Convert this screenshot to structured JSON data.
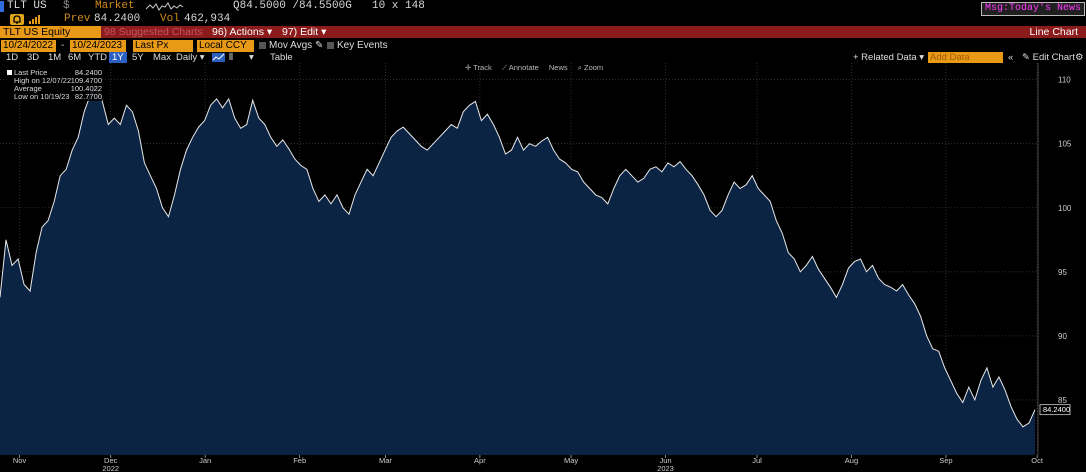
{
  "header": {
    "ticker": "TLT US",
    "currency": "$",
    "market": "Market",
    "quote": "Q84.5000 /84.5500G",
    "size": "10 x 148",
    "msg": "Msg:Today's News",
    "prev_label": "Prev",
    "prev_value": "84.2400",
    "vol_label": "Vol",
    "vol_value": "462,934"
  },
  "menubar": {
    "security": "TLT US Equity",
    "suggested": "98 Suggested Charts",
    "actions": "96) Actions ▾",
    "edit": "97) Edit ▾",
    "chart_type": "Line Chart"
  },
  "controls": {
    "start_date": "10/24/2022",
    "end_date": "10/24/2023",
    "field": "Last Px",
    "currency": "Local CCY",
    "mov_avgs": "Mov Avgs",
    "key_events": "Key Events"
  },
  "rangebar": {
    "ranges": [
      "1D",
      "3D",
      "1M",
      "6M",
      "YTD",
      "1Y",
      "5Y",
      "Max"
    ],
    "frequency": "Daily ▾",
    "table": "Table",
    "related": "+ Related Data ▾",
    "add_data": "Add Data",
    "edit_chart": "Edit Chart",
    "selected_range": "1Y"
  },
  "chart_toolbar": {
    "track": "✛ Track",
    "annotate": "⟋ Annotate",
    "news": "News",
    "zoom": "⌕ Zoom"
  },
  "legend": {
    "items": [
      {
        "label": "Last Price",
        "value": "84.2400"
      },
      {
        "label": "High on 12/07/22",
        "value": "109.4700"
      },
      {
        "label": "Average",
        "value": "100.4022"
      },
      {
        "label": "Low on 10/19/23",
        "value": "82.7700"
      }
    ]
  },
  "colors": {
    "accent": "#e89a17",
    "menubar": "#8c1c1c",
    "line": "#ffffff",
    "fill": "#0c2444"
  },
  "chart_data": {
    "type": "area",
    "ylim": [
      80.7,
      111.3
    ],
    "yticks": [
      85,
      90,
      95,
      100,
      105,
      110
    ],
    "last_label": "84.2400",
    "x_labels": [
      {
        "label": "Nov",
        "x": 6.5
      },
      {
        "label": "Dec",
        "x": 36.8
      },
      {
        "label": "Jan",
        "x": 68.2
      },
      {
        "label": "Feb",
        "x": 99.6
      },
      {
        "label": "Mar",
        "x": 128.1
      },
      {
        "label": "Apr",
        "x": 159.5
      },
      {
        "label": "May",
        "x": 189.8
      },
      {
        "label": "Jun",
        "x": 221.2
      },
      {
        "label": "Jul",
        "x": 251.6
      },
      {
        "label": "Aug",
        "x": 283
      },
      {
        "label": "Sep",
        "x": 314.4
      },
      {
        "label": "Oct",
        "x": 344.7
      }
    ],
    "year_labels": [
      {
        "label": "2022",
        "x": 36.8
      },
      {
        "label": "2023",
        "x": 221.2
      }
    ],
    "points": [
      [
        0,
        93.0
      ],
      [
        2,
        97.5
      ],
      [
        4,
        95.5
      ],
      [
        6,
        96.0
      ],
      [
        8,
        94.0
      ],
      [
        10,
        93.5
      ],
      [
        12,
        96.5
      ],
      [
        14,
        98.5
      ],
      [
        16,
        99.0
      ],
      [
        18,
        100.5
      ],
      [
        20,
        102.5
      ],
      [
        22,
        103.0
      ],
      [
        24,
        104.5
      ],
      [
        26,
        105.5
      ],
      [
        28,
        107.5
      ],
      [
        30,
        108.8
      ],
      [
        32,
        109.5
      ],
      [
        34,
        108.3
      ],
      [
        36,
        106.5
      ],
      [
        38,
        107.0
      ],
      [
        40,
        106.5
      ],
      [
        42,
        108.0
      ],
      [
        44,
        107.5
      ],
      [
        46,
        106.0
      ],
      [
        48,
        103.5
      ],
      [
        50,
        102.5
      ],
      [
        52,
        101.5
      ],
      [
        54,
        100.0
      ],
      [
        56,
        99.3
      ],
      [
        58,
        101.0
      ],
      [
        60,
        103.0
      ],
      [
        62,
        104.5
      ],
      [
        64,
        105.5
      ],
      [
        66,
        106.3
      ],
      [
        68,
        106.8
      ],
      [
        70,
        108.0
      ],
      [
        72,
        108.5
      ],
      [
        74,
        107.8
      ],
      [
        76,
        108.5
      ],
      [
        78,
        107.0
      ],
      [
        80,
        106.2
      ],
      [
        82,
        106.5
      ],
      [
        84,
        108.4
      ],
      [
        86,
        107.0
      ],
      [
        88,
        106.5
      ],
      [
        90,
        105.5
      ],
      [
        92,
        104.8
      ],
      [
        94,
        105.3
      ],
      [
        96,
        104.6
      ],
      [
        98,
        103.8
      ],
      [
        100,
        103.3
      ],
      [
        102,
        103.0
      ],
      [
        104,
        101.5
      ],
      [
        106,
        100.5
      ],
      [
        108,
        101.0
      ],
      [
        110,
        100.3
      ],
      [
        112,
        101.0
      ],
      [
        114,
        100.0
      ],
      [
        116,
        99.5
      ],
      [
        118,
        101.0
      ],
      [
        120,
        102.0
      ],
      [
        122,
        103.0
      ],
      [
        124,
        102.5
      ],
      [
        126,
        103.5
      ],
      [
        128,
        104.5
      ],
      [
        130,
        105.5
      ],
      [
        132,
        106.0
      ],
      [
        134,
        106.3
      ],
      [
        136,
        105.8
      ],
      [
        138,
        105.3
      ],
      [
        140,
        104.8
      ],
      [
        142,
        104.5
      ],
      [
        144,
        105.0
      ],
      [
        146,
        105.5
      ],
      [
        148,
        106.0
      ],
      [
        150,
        106.5
      ],
      [
        152,
        106.2
      ],
      [
        154,
        107.5
      ],
      [
        156,
        108.0
      ],
      [
        158,
        108.3
      ],
      [
        160,
        106.8
      ],
      [
        162,
        107.3
      ],
      [
        164,
        106.5
      ],
      [
        166,
        105.5
      ],
      [
        168,
        104.2
      ],
      [
        170,
        104.5
      ],
      [
        172,
        105.5
      ],
      [
        174,
        104.5
      ],
      [
        176,
        105.0
      ],
      [
        178,
        104.8
      ],
      [
        180,
        105.2
      ],
      [
        182,
        105.5
      ],
      [
        184,
        104.5
      ],
      [
        186,
        103.8
      ],
      [
        188,
        103.5
      ],
      [
        190,
        103.0
      ],
      [
        192,
        102.8
      ],
      [
        194,
        102.0
      ],
      [
        196,
        101.5
      ],
      [
        198,
        101.0
      ],
      [
        200,
        100.8
      ],
      [
        202,
        100.3
      ],
      [
        204,
        101.5
      ],
      [
        206,
        102.5
      ],
      [
        208,
        103.0
      ],
      [
        210,
        102.5
      ],
      [
        212,
        102.0
      ],
      [
        214,
        102.3
      ],
      [
        216,
        103.0
      ],
      [
        218,
        103.2
      ],
      [
        220,
        102.8
      ],
      [
        222,
        103.5
      ],
      [
        224,
        103.2
      ],
      [
        226,
        103.6
      ],
      [
        228,
        103.0
      ],
      [
        230,
        102.5
      ],
      [
        232,
        101.8
      ],
      [
        234,
        101.0
      ],
      [
        236,
        99.8
      ],
      [
        238,
        99.3
      ],
      [
        240,
        99.8
      ],
      [
        242,
        101.0
      ],
      [
        244,
        102.0
      ],
      [
        246,
        101.5
      ],
      [
        248,
        101.8
      ],
      [
        250,
        102.5
      ],
      [
        252,
        101.5
      ],
      [
        254,
        101.0
      ],
      [
        256,
        100.5
      ],
      [
        258,
        99.0
      ],
      [
        260,
        98.0
      ],
      [
        262,
        96.5
      ],
      [
        264,
        96.0
      ],
      [
        266,
        95.0
      ],
      [
        268,
        95.5
      ],
      [
        270,
        96.2
      ],
      [
        272,
        95.2
      ],
      [
        274,
        94.5
      ],
      [
        276,
        93.8
      ],
      [
        278,
        93.0
      ],
      [
        280,
        94.0
      ],
      [
        282,
        95.3
      ],
      [
        284,
        95.8
      ],
      [
        286,
        96.0
      ],
      [
        288,
        95.0
      ],
      [
        290,
        95.5
      ],
      [
        292,
        94.5
      ],
      [
        294,
        94.0
      ],
      [
        296,
        93.8
      ],
      [
        298,
        93.5
      ],
      [
        300,
        94.0
      ],
      [
        302,
        93.2
      ],
      [
        304,
        92.5
      ],
      [
        306,
        91.5
      ],
      [
        308,
        90.0
      ],
      [
        310,
        89.0
      ],
      [
        312,
        88.8
      ],
      [
        314,
        87.5
      ],
      [
        316,
        86.5
      ],
      [
        318,
        85.5
      ],
      [
        320,
        84.8
      ],
      [
        322,
        86.0
      ],
      [
        324,
        85.0
      ],
      [
        326,
        86.5
      ],
      [
        328,
        87.5
      ],
      [
        330,
        86.0
      ],
      [
        332,
        86.8
      ],
      [
        334,
        85.8
      ],
      [
        336,
        84.5
      ],
      [
        338,
        83.5
      ],
      [
        340,
        82.9
      ],
      [
        342,
        83.2
      ],
      [
        344,
        84.24
      ]
    ]
  }
}
